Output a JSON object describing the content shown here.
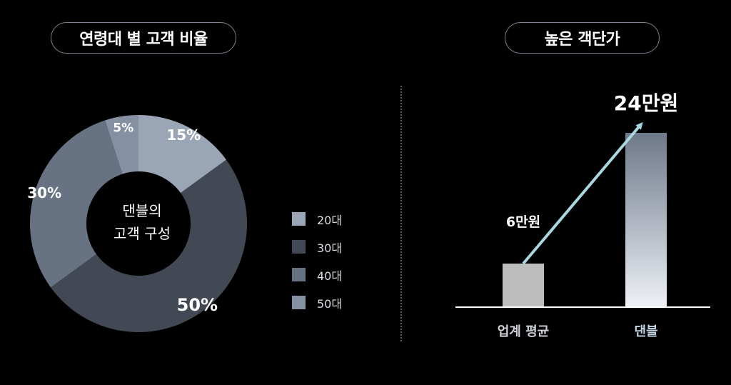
{
  "left_title": "연령대 별 고객 비율",
  "right_title": "높은 객단가",
  "donut_center": [
    "댄블의",
    "고객 구성"
  ],
  "colors": {
    "20s": "#9aa6b6",
    "30s": "#424955",
    "40s": "#677282",
    "50s": "#8590a2",
    "bar_industry": "#bdbdbd",
    "bar_danbl_top": "#6d7889",
    "bar_danbl_bottom": "#eef1f6",
    "arrow": "#a9d7df",
    "baseline": "#ffffff"
  },
  "chart_data": [
    {
      "type": "pie",
      "title": "",
      "categories": [
        "20대",
        "30대",
        "40대",
        "50대"
      ],
      "values": [
        15,
        50,
        30,
        5
      ],
      "labels": [
        "15%",
        "50%",
        "30%",
        "5%"
      ],
      "legend_position": "right"
    },
    {
      "type": "bar",
      "title": "",
      "categories": [
        "업계 평균",
        "댄블"
      ],
      "values": [
        6,
        24
      ],
      "value_labels": [
        "6만원",
        "24만원"
      ],
      "unit": "만원",
      "ylim": [
        0,
        25
      ]
    }
  ]
}
